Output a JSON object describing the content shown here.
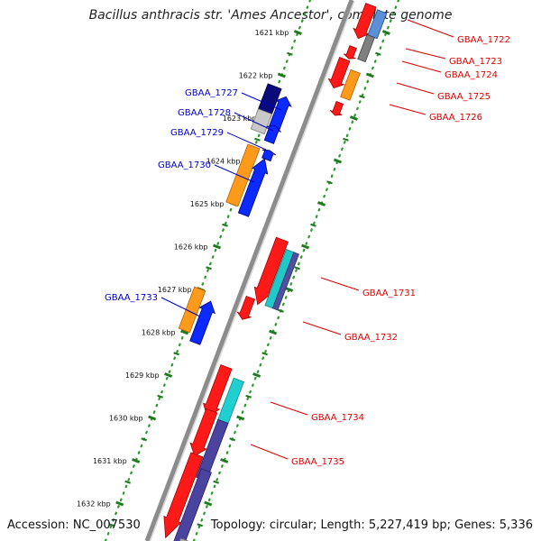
{
  "title": "Bacillus anthracis str. 'Ames Ancestor', complete genome",
  "footer": {
    "accession": "Accession: NC_007530",
    "stats": "Topology: circular; Length: 5,227,419 bp; Genes: 5,336"
  },
  "colors": {
    "forward_label": "#e00000",
    "reverse_label": "#0000c8",
    "backbone": "#8c8c8c",
    "ruler_dots": "#2a9a2a",
    "ruler_ticks": "#1f7a1f"
  },
  "ruler_ticks": [
    {
      "kbp": 1621,
      "label": "1621 kbp"
    },
    {
      "kbp": 1622,
      "label": "1622 kbp"
    },
    {
      "kbp": 1623,
      "label": "1623 kbp"
    },
    {
      "kbp": 1624,
      "label": "1624 kbp"
    },
    {
      "kbp": 1625,
      "label": "1625 kbp"
    },
    {
      "kbp": 1626,
      "label": "1626 kbp"
    },
    {
      "kbp": 1627,
      "label": "1627 kbp"
    },
    {
      "kbp": 1628,
      "label": "1628 kbp"
    },
    {
      "kbp": 1629,
      "label": "1629 kbp"
    },
    {
      "kbp": 1630,
      "label": "1630 kbp"
    },
    {
      "kbp": 1631,
      "label": "1631 kbp"
    },
    {
      "kbp": 1632,
      "label": "1632 kbp"
    }
  ],
  "gene_labels_forward": [
    "GBAA_1722",
    "GBAA_1723",
    "GBAA_1724",
    "GBAA_1725",
    "GBAA_1726",
    "GBAA_1731",
    "GBAA_1732",
    "GBAA_1734",
    "GBAA_1735"
  ],
  "gene_labels_reverse": [
    "GBAA_1727",
    "GBAA_1728",
    "GBAA_1729",
    "GBAA_1730",
    "GBAA_1733"
  ]
}
